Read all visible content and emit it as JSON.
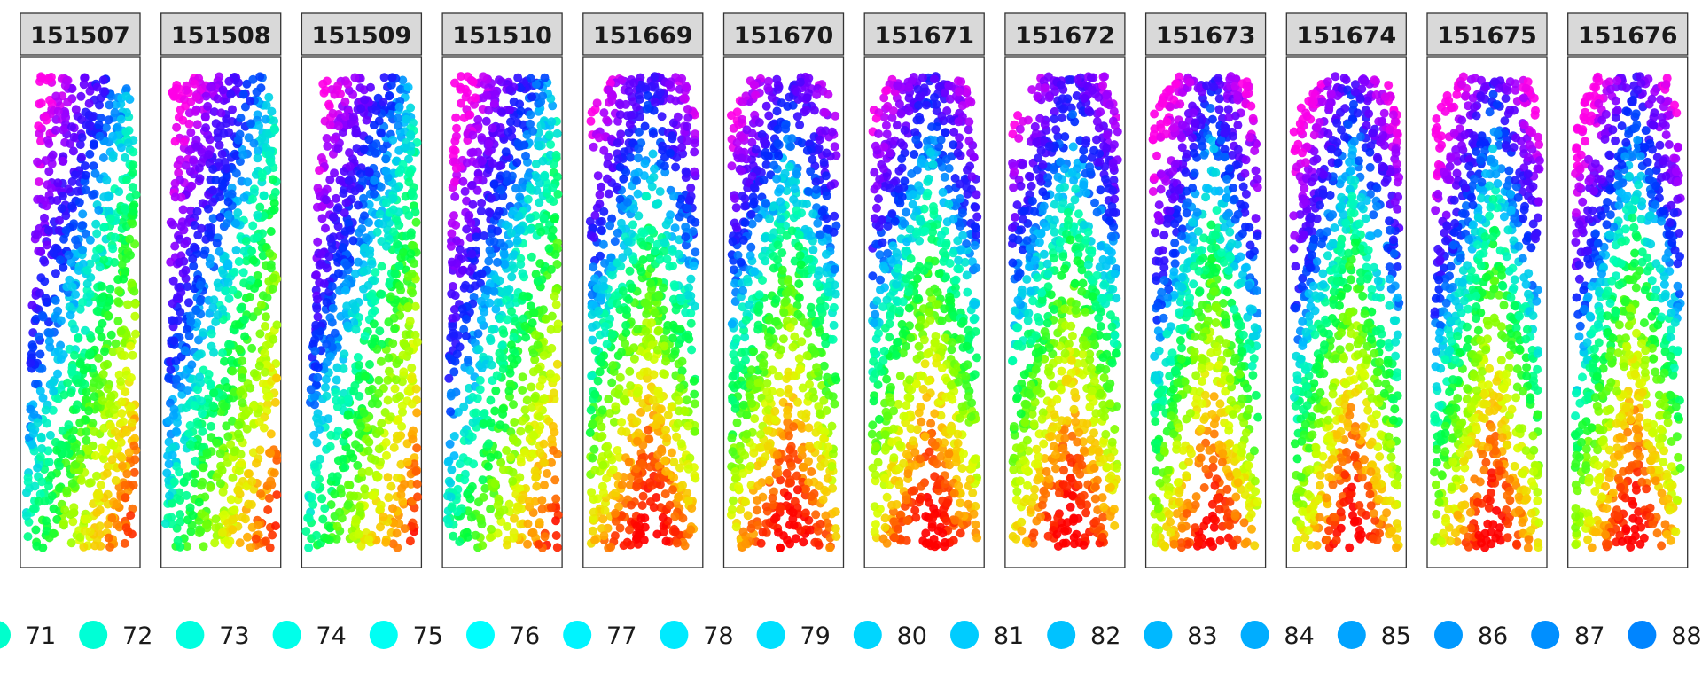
{
  "chart_data": {
    "type": "scatter",
    "facet_labels": [
      "151507",
      "151508",
      "151509",
      "151510",
      "151669",
      "151670",
      "151671",
      "151672",
      "151673",
      "151674",
      "151675",
      "151676"
    ],
    "color_scale": "rainbow",
    "legend": {
      "placement": "bottom",
      "entries": [
        "71",
        "72",
        "73",
        "74",
        "75",
        "76",
        "77",
        "78",
        "79",
        "80",
        "81",
        "82",
        "83",
        "84",
        "85",
        "86",
        "87",
        "88"
      ],
      "colors": [
        "#00ffcc",
        "#00ffd6",
        "#00ffe0",
        "#00ffea",
        "#00fff4",
        "#00ffff",
        "#00f4ff",
        "#00eaff",
        "#00e0ff",
        "#00d6ff",
        "#00ccff",
        "#00c2ff",
        "#00b8ff",
        "#00adff",
        "#00a3ff",
        "#0099ff",
        "#008fff",
        "#0085ff"
      ]
    }
  }
}
